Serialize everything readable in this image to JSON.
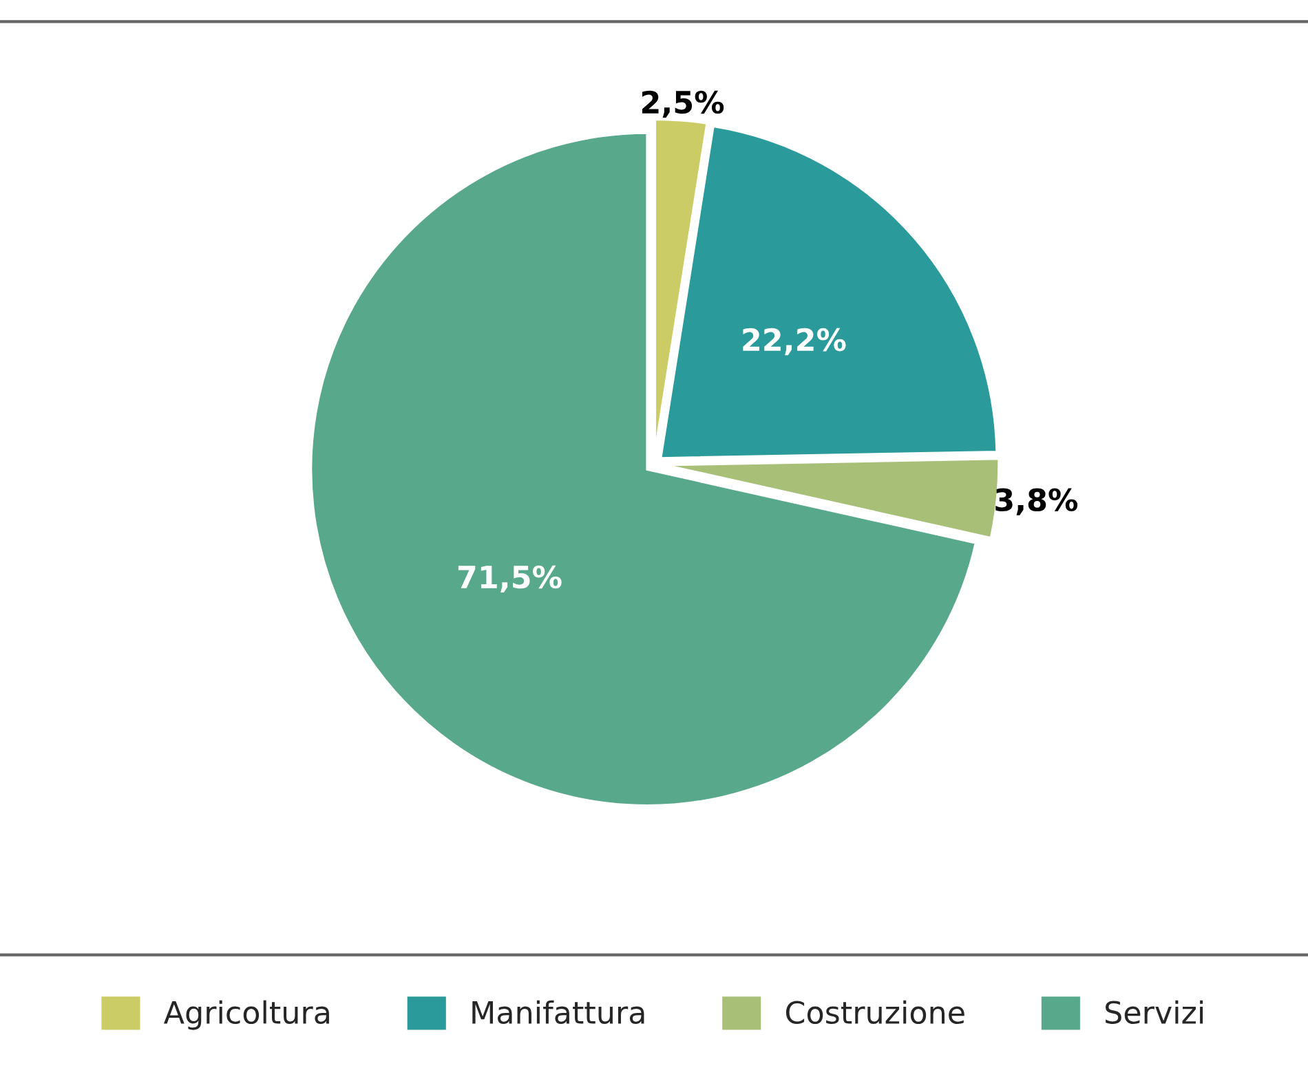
{
  "chart_data": {
    "type": "pie",
    "categories": [
      "Agricoltura",
      "Manifattura",
      "Costruzione",
      "Servizi"
    ],
    "values": [
      2.5,
      22.2,
      3.8,
      71.5
    ],
    "colors": [
      "#cccc66",
      "#2a9a9a",
      "#a8bf78",
      "#58a88c"
    ],
    "value_labels": [
      "2,5%",
      "22,2%",
      "3,8%",
      "71,5%"
    ],
    "legend": "bottom"
  }
}
